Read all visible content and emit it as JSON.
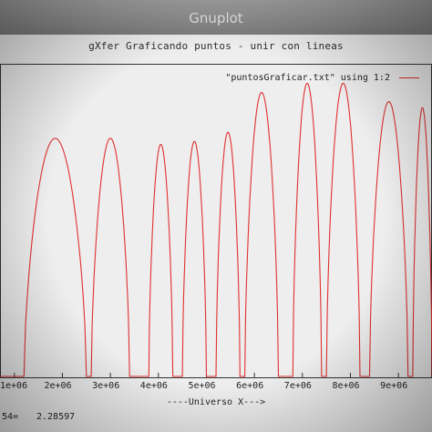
{
  "window": {
    "title": "Gnuplot"
  },
  "plot": {
    "title": "gXfer Graficando puntos - unir con lineas",
    "legend": "\"puntosGraficar.txt\" using 1:2",
    "xlabel": "----Universo X--->",
    "series_color": "#e03030"
  },
  "status": {
    "label": "54=",
    "value": "2.28597"
  },
  "chart_data": {
    "type": "line",
    "title": "gXfer Graficando puntos - unir con lineas",
    "xlabel": "----Universo X--->",
    "ylabel": "",
    "x_ticks": [
      "1e+06",
      "2e+06",
      "3e+06",
      "4e+06",
      "5e+06",
      "6e+06",
      "7e+06",
      "8e+06",
      "9e+06"
    ],
    "xlim": [
      700000,
      9700000
    ],
    "ylim": [
      0,
      1
    ],
    "series": [
      {
        "name": "\"puntosGraficar.txt\" using 1:2",
        "peaks": [
          {
            "start": 1200000,
            "end": 2500000,
            "height": 0.78
          },
          {
            "start": 2600000,
            "end": 3400000,
            "height": 0.78
          },
          {
            "start": 3800000,
            "end": 4300000,
            "height": 0.76
          },
          {
            "start": 4500000,
            "end": 5000000,
            "height": 0.77
          },
          {
            "start": 5200000,
            "end": 5700000,
            "height": 0.8
          },
          {
            "start": 5800000,
            "end": 6500000,
            "height": 0.93
          },
          {
            "start": 6800000,
            "end": 7400000,
            "height": 0.96
          },
          {
            "start": 7500000,
            "end": 8200000,
            "height": 0.96
          },
          {
            "start": 8400000,
            "end": 9200000,
            "height": 0.9
          },
          {
            "start": 9300000,
            "end": 9700000,
            "height": 0.88
          }
        ]
      }
    ]
  }
}
